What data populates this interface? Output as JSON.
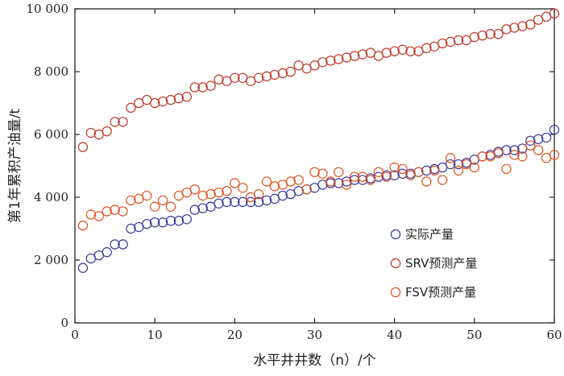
{
  "chart_data": {
    "type": "scatter",
    "xlabel": "水平井井数（n）/个",
    "ylabel": "第1年累积产油量/t",
    "xlim": [
      0,
      60
    ],
    "ylim": [
      0,
      10000
    ],
    "xticks": [
      0,
      10,
      20,
      30,
      40,
      50,
      60
    ],
    "xtick_labels": [
      "0",
      "10",
      "20",
      "30",
      "40",
      "50",
      "60"
    ],
    "yticks": [
      0,
      2000,
      4000,
      6000,
      8000,
      10000
    ],
    "ytick_labels": [
      "0",
      "2 000",
      "4 000",
      "6 000",
      "8 000",
      "10 000"
    ],
    "legend_position": "center-right",
    "series": [
      {
        "name": "实际产量",
        "color": "#3a3a9a",
        "x": [
          1,
          2,
          3,
          4,
          5,
          6,
          7,
          8,
          9,
          10,
          11,
          12,
          13,
          14,
          15,
          16,
          17,
          18,
          19,
          20,
          21,
          22,
          23,
          24,
          25,
          26,
          27,
          28,
          29,
          30,
          31,
          32,
          33,
          34,
          35,
          36,
          37,
          38,
          39,
          40,
          41,
          42,
          43,
          44,
          45,
          46,
          47,
          48,
          49,
          50,
          51,
          52,
          53,
          54,
          55,
          56,
          57,
          58,
          59,
          60
        ],
        "y": [
          1750,
          2050,
          2150,
          2250,
          2500,
          2500,
          3000,
          3050,
          3150,
          3200,
          3200,
          3250,
          3250,
          3300,
          3600,
          3650,
          3700,
          3800,
          3850,
          3850,
          3850,
          3850,
          3850,
          3900,
          3950,
          4050,
          4100,
          4200,
          4250,
          4300,
          4400,
          4450,
          4450,
          4500,
          4550,
          4550,
          4600,
          4650,
          4700,
          4700,
          4750,
          4750,
          4800,
          4850,
          4900,
          4950,
          5050,
          5050,
          5100,
          5200,
          5300,
          5350,
          5450,
          5500,
          5500,
          5550,
          5800,
          5850,
          5900,
          6150
        ]
      },
      {
        "name": "SRV预测产量",
        "color": "#c0392b",
        "x": [
          1,
          2,
          3,
          4,
          5,
          6,
          7,
          8,
          9,
          10,
          11,
          12,
          13,
          14,
          15,
          16,
          17,
          18,
          19,
          20,
          21,
          22,
          23,
          24,
          25,
          26,
          27,
          28,
          29,
          30,
          31,
          32,
          33,
          34,
          35,
          36,
          37,
          38,
          39,
          40,
          41,
          42,
          43,
          44,
          45,
          46,
          47,
          48,
          49,
          50,
          51,
          52,
          53,
          54,
          55,
          56,
          57,
          58,
          59,
          60
        ],
        "y": [
          5600,
          6050,
          6000,
          6100,
          6400,
          6400,
          6850,
          7000,
          7100,
          7000,
          7050,
          7100,
          7150,
          7200,
          7500,
          7500,
          7550,
          7750,
          7700,
          7800,
          7800,
          7700,
          7800,
          7850,
          7900,
          7950,
          8000,
          8200,
          8100,
          8200,
          8300,
          8350,
          8400,
          8450,
          8500,
          8550,
          8600,
          8500,
          8600,
          8650,
          8700,
          8650,
          8650,
          8750,
          8800,
          8900,
          8950,
          9000,
          9000,
          9100,
          9150,
          9200,
          9200,
          9350,
          9400,
          9450,
          9500,
          9650,
          9750,
          9850
        ]
      },
      {
        "name": "FSV预测产量",
        "color": "#e0531f",
        "x": [
          1,
          2,
          3,
          4,
          5,
          6,
          7,
          8,
          9,
          10,
          11,
          12,
          13,
          14,
          15,
          16,
          17,
          18,
          19,
          20,
          21,
          22,
          23,
          24,
          25,
          26,
          27,
          28,
          29,
          30,
          31,
          32,
          33,
          34,
          35,
          36,
          37,
          38,
          39,
          40,
          41,
          42,
          43,
          44,
          45,
          46,
          47,
          48,
          49,
          50,
          51,
          52,
          53,
          54,
          55,
          56,
          57,
          58,
          59,
          60
        ],
        "y": [
          3100,
          3450,
          3400,
          3550,
          3600,
          3550,
          3900,
          3950,
          4050,
          3700,
          3900,
          3700,
          4050,
          4150,
          4250,
          4050,
          4100,
          4150,
          4200,
          4450,
          4300,
          4000,
          4100,
          4500,
          4350,
          4400,
          4500,
          4550,
          4250,
          4800,
          4750,
          4500,
          4800,
          4400,
          4650,
          4650,
          4550,
          4800,
          4650,
          4950,
          4900,
          4700,
          4800,
          4500,
          4850,
          4550,
          5250,
          4850,
          5050,
          4950,
          5300,
          5300,
          5400,
          4900,
          5350,
          5300,
          5650,
          5500,
          5250,
          5350
        ]
      }
    ]
  }
}
